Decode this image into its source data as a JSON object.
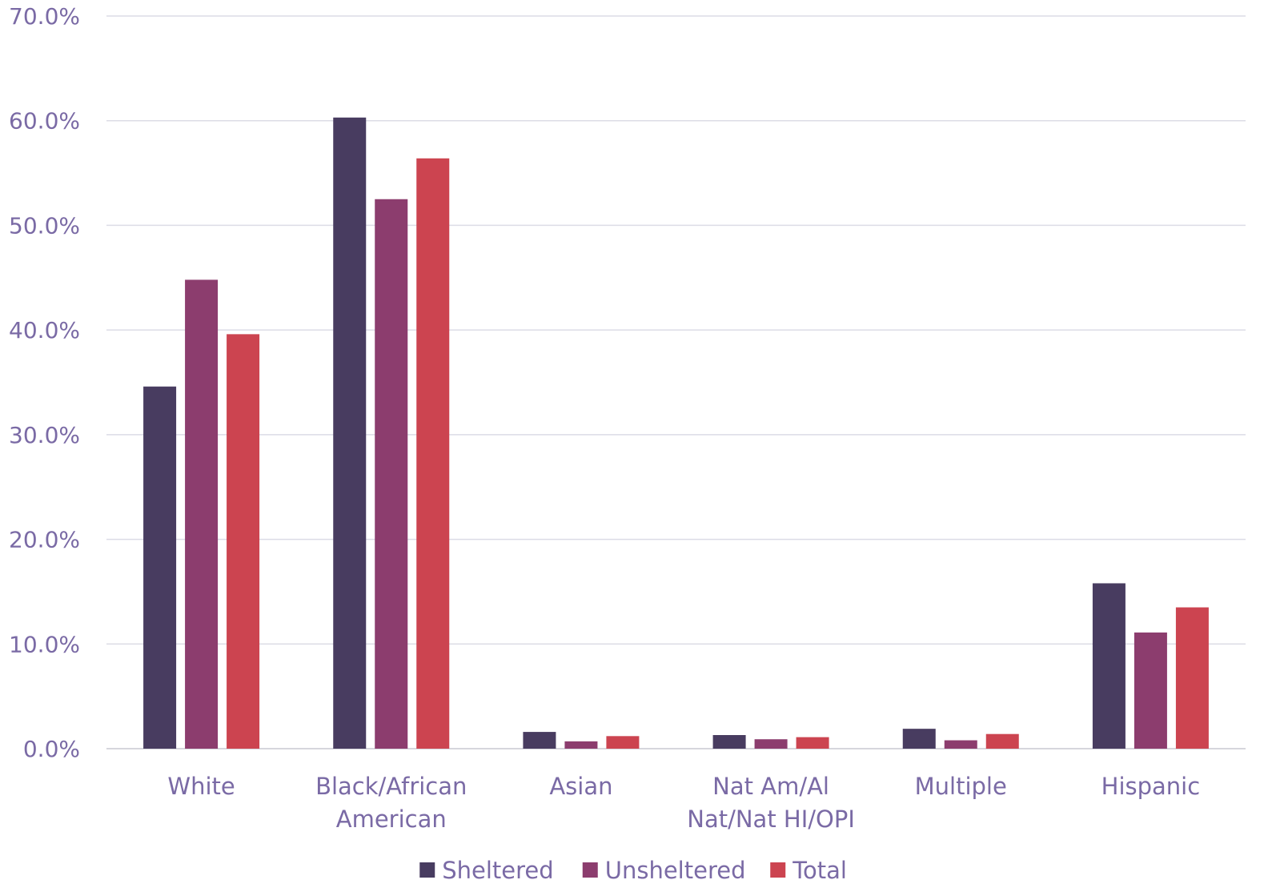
{
  "chart_data": {
    "type": "bar",
    "categories": [
      [
        "White"
      ],
      [
        "Black/African",
        "American"
      ],
      [
        "Asian"
      ],
      [
        "Nat Am/Al",
        "Nat/Nat HI/OPI"
      ],
      [
        "Multiple"
      ],
      [
        "Hispanic"
      ]
    ],
    "series": [
      {
        "name": "Sheltered",
        "color": "#483c60",
        "values": [
          34.6,
          60.3,
          1.6,
          1.3,
          1.9,
          15.8
        ]
      },
      {
        "name": "Unsheltered",
        "color": "#8c3d6e",
        "values": [
          44.8,
          52.5,
          0.7,
          0.9,
          0.8,
          11.1
        ]
      },
      {
        "name": "Total",
        "color": "#cc4450",
        "values": [
          39.6,
          56.4,
          1.2,
          1.1,
          1.4,
          13.5
        ]
      }
    ],
    "yticks": [
      "0.0%",
      "10.0%",
      "20.0%",
      "30.0%",
      "40.0%",
      "50.0%",
      "60.0%",
      "70.0%"
    ],
    "ylim": [
      0,
      70
    ],
    "grid": true,
    "legend_position": "bottom",
    "title": "",
    "xlabel": "",
    "ylabel": "",
    "text_color": "#7a6aa5",
    "grid_color": "#dcdce6"
  }
}
